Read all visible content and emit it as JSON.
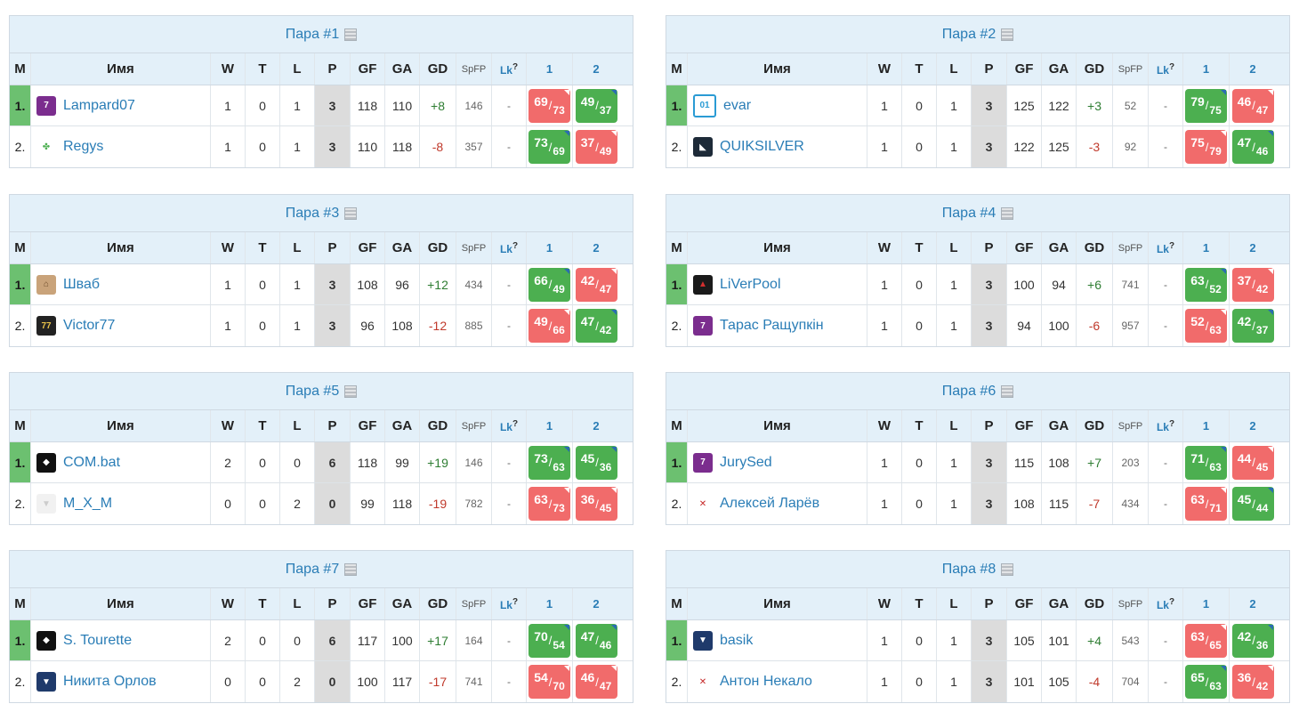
{
  "headers": {
    "m": "M",
    "name": "Имя",
    "w": "W",
    "t": "T",
    "l": "L",
    "p": "P",
    "gf": "GF",
    "ga": "GA",
    "gd": "GD",
    "spfp": "SpFP",
    "lk": "Lk",
    "lk_sup": "?",
    "r1": "1",
    "r2": "2"
  },
  "colors": {
    "win": "#4caf50",
    "loss": "#f16b6b",
    "link": "#2a7db6",
    "header_bg": "#e3f0f9"
  },
  "pairs": [
    {
      "title": "Пара #1",
      "rows": [
        {
          "pos": "1.",
          "name": "Lampard07",
          "avatar": "purple-shirt-icon",
          "w": "1",
          "t": "0",
          "l": "1",
          "p": "3",
          "gf": "118",
          "ga": "110",
          "gd": "+8",
          "spfp": "146",
          "lk": "-",
          "r1": {
            "a": "69",
            "b": "73",
            "res": "loss"
          },
          "r2": {
            "a": "49",
            "b": "37",
            "res": "win"
          }
        },
        {
          "pos": "2.",
          "name": "Regys",
          "avatar": "clover-icon",
          "w": "1",
          "t": "0",
          "l": "1",
          "p": "3",
          "gf": "110",
          "ga": "118",
          "gd": "-8",
          "spfp": "357",
          "lk": "-",
          "r1": {
            "a": "73",
            "b": "69",
            "res": "win"
          },
          "r2": {
            "a": "37",
            "b": "49",
            "res": "loss"
          }
        }
      ]
    },
    {
      "title": "Пара #2",
      "rows": [
        {
          "pos": "1.",
          "name": "evar",
          "avatar": "badge-01-icon",
          "w": "1",
          "t": "0",
          "l": "1",
          "p": "3",
          "gf": "125",
          "ga": "122",
          "gd": "+3",
          "spfp": "52",
          "lk": "-",
          "r1": {
            "a": "79",
            "b": "75",
            "res": "win"
          },
          "r2": {
            "a": "46",
            "b": "47",
            "res": "loss"
          }
        },
        {
          "pos": "2.",
          "name": "QUIKSILVER",
          "avatar": "dark-photo-icon",
          "w": "1",
          "t": "0",
          "l": "1",
          "p": "3",
          "gf": "122",
          "ga": "125",
          "gd": "-3",
          "spfp": "92",
          "lk": "-",
          "r1": {
            "a": "75",
            "b": "79",
            "res": "loss"
          },
          "r2": {
            "a": "47",
            "b": "46",
            "res": "win"
          }
        }
      ]
    },
    {
      "title": "Пара #3",
      "rows": [
        {
          "pos": "1.",
          "name": "Шваб",
          "avatar": "animal-icon",
          "w": "1",
          "t": "0",
          "l": "1",
          "p": "3",
          "gf": "108",
          "ga": "96",
          "gd": "+12",
          "spfp": "434",
          "lk": "-",
          "r1": {
            "a": "66",
            "b": "49",
            "res": "win"
          },
          "r2": {
            "a": "42",
            "b": "47",
            "res": "loss"
          }
        },
        {
          "pos": "2.",
          "name": "Victor77",
          "avatar": "badge-77-icon",
          "w": "1",
          "t": "0",
          "l": "1",
          "p": "3",
          "gf": "96",
          "ga": "108",
          "gd": "-12",
          "spfp": "885",
          "lk": "-",
          "r1": {
            "a": "49",
            "b": "66",
            "res": "loss"
          },
          "r2": {
            "a": "47",
            "b": "42",
            "res": "win"
          }
        }
      ]
    },
    {
      "title": "Пара #4",
      "rows": [
        {
          "pos": "1.",
          "name": "LiVerPool",
          "avatar": "red-logo-icon",
          "w": "1",
          "t": "0",
          "l": "1",
          "p": "3",
          "gf": "100",
          "ga": "94",
          "gd": "+6",
          "spfp": "741",
          "lk": "-",
          "r1": {
            "a": "63",
            "b": "52",
            "res": "win"
          },
          "r2": {
            "a": "37",
            "b": "42",
            "res": "loss"
          }
        },
        {
          "pos": "2.",
          "name": "Тарас Ращупкін",
          "avatar": "purple-shirt-icon",
          "w": "1",
          "t": "0",
          "l": "1",
          "p": "3",
          "gf": "94",
          "ga": "100",
          "gd": "-6",
          "spfp": "957",
          "lk": "-",
          "r1": {
            "a": "52",
            "b": "63",
            "res": "loss"
          },
          "r2": {
            "a": "42",
            "b": "37",
            "res": "win"
          }
        }
      ]
    },
    {
      "title": "Пара #5",
      "rows": [
        {
          "pos": "1.",
          "name": "COM.bat",
          "avatar": "bat-icon",
          "w": "2",
          "t": "0",
          "l": "0",
          "p": "6",
          "gf": "118",
          "ga": "99",
          "gd": "+19",
          "spfp": "146",
          "lk": "-",
          "r1": {
            "a": "73",
            "b": "63",
            "res": "win"
          },
          "r2": {
            "a": "45",
            "b": "36",
            "res": "win"
          }
        },
        {
          "pos": "2.",
          "name": "M_X_M",
          "avatar": "white-shirt-icon",
          "w": "0",
          "t": "0",
          "l": "2",
          "p": "0",
          "gf": "99",
          "ga": "118",
          "gd": "-19",
          "spfp": "782",
          "lk": "-",
          "r1": {
            "a": "63",
            "b": "73",
            "res": "loss"
          },
          "r2": {
            "a": "36",
            "b": "45",
            "res": "loss"
          }
        }
      ]
    },
    {
      "title": "Пара #6",
      "rows": [
        {
          "pos": "1.",
          "name": "JurySed",
          "avatar": "purple-shirt-icon",
          "w": "1",
          "t": "0",
          "l": "1",
          "p": "3",
          "gf": "115",
          "ga": "108",
          "gd": "+7",
          "spfp": "203",
          "lk": "-",
          "r1": {
            "a": "71",
            "b": "63",
            "res": "win"
          },
          "r2": {
            "a": "44",
            "b": "45",
            "res": "loss"
          }
        },
        {
          "pos": "2.",
          "name": "Алексей Ларёв",
          "avatar": "red-shirt-icon",
          "w": "1",
          "t": "0",
          "l": "1",
          "p": "3",
          "gf": "108",
          "ga": "115",
          "gd": "-7",
          "spfp": "434",
          "lk": "-",
          "r1": {
            "a": "63",
            "b": "71",
            "res": "loss"
          },
          "r2": {
            "a": "45",
            "b": "44",
            "res": "win"
          }
        }
      ]
    },
    {
      "title": "Пара #7",
      "rows": [
        {
          "pos": "1.",
          "name": "S. Tourette",
          "avatar": "bat-icon",
          "w": "2",
          "t": "0",
          "l": "0",
          "p": "6",
          "gf": "117",
          "ga": "100",
          "gd": "+17",
          "spfp": "164",
          "lk": "-",
          "r1": {
            "a": "70",
            "b": "54",
            "res": "win"
          },
          "r2": {
            "a": "47",
            "b": "46",
            "res": "win"
          }
        },
        {
          "pos": "2.",
          "name": "Никита Орлов",
          "avatar": "navy-shirt-icon",
          "w": "0",
          "t": "0",
          "l": "2",
          "p": "0",
          "gf": "100",
          "ga": "117",
          "gd": "-17",
          "spfp": "741",
          "lk": "-",
          "r1": {
            "a": "54",
            "b": "70",
            "res": "loss"
          },
          "r2": {
            "a": "46",
            "b": "47",
            "res": "loss"
          }
        }
      ]
    },
    {
      "title": "Пара #8",
      "rows": [
        {
          "pos": "1.",
          "name": "basik",
          "avatar": "navy-shirt-icon",
          "w": "1",
          "t": "0",
          "l": "1",
          "p": "3",
          "gf": "105",
          "ga": "101",
          "gd": "+4",
          "spfp": "543",
          "lk": "-",
          "r1": {
            "a": "63",
            "b": "65",
            "res": "loss"
          },
          "r2": {
            "a": "42",
            "b": "36",
            "res": "win"
          }
        },
        {
          "pos": "2.",
          "name": "Антон Некало",
          "avatar": "red-shirt-icon",
          "w": "1",
          "t": "0",
          "l": "1",
          "p": "3",
          "gf": "101",
          "ga": "105",
          "gd": "-4",
          "spfp": "704",
          "lk": "-",
          "r1": {
            "a": "65",
            "b": "63",
            "res": "win"
          },
          "r2": {
            "a": "36",
            "b": "42",
            "res": "loss"
          }
        }
      ]
    }
  ]
}
